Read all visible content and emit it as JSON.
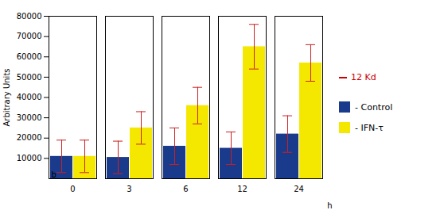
{
  "chart_data": {
    "type": "bar",
    "ylabel": "Arbitrary Units",
    "xlabel": "h",
    "categories": [
      "0",
      "3",
      "6",
      "12",
      "24"
    ],
    "series": [
      {
        "name": "- Control",
        "color": "#1a3a8c",
        "values": [
          11000,
          10500,
          16000,
          15000,
          22000
        ],
        "errors": [
          8000,
          8000,
          9000,
          8000,
          9000
        ]
      },
      {
        "name": "- IFN-τ",
        "color": "#f5e800",
        "values": [
          11000,
          25000,
          36000,
          65000,
          57000
        ],
        "errors": [
          8000,
          8000,
          9000,
          11000,
          9000
        ]
      }
    ],
    "ylim": [
      0,
      80000
    ],
    "yticks": [
      10000,
      20000,
      30000,
      40000,
      50000,
      60000,
      70000,
      80000
    ],
    "grid": false,
    "legend": "right",
    "annotations": [
      "b",
      "12 Kd"
    ]
  }
}
